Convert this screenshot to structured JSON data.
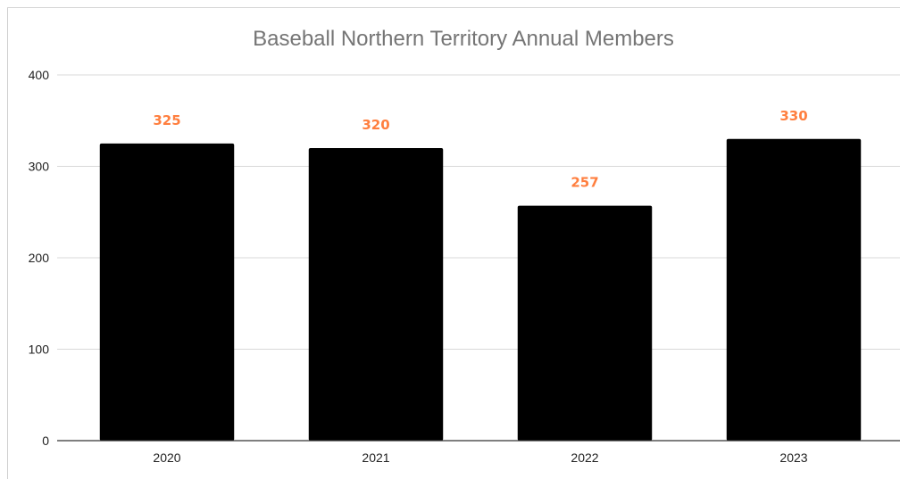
{
  "chart_data": {
    "type": "bar",
    "title": "Baseball Northern Territory Annual Members",
    "xlabel": "",
    "ylabel": "",
    "categories": [
      "2020",
      "2021",
      "2022",
      "2023"
    ],
    "values": [
      325,
      320,
      257,
      330
    ],
    "ylim": [
      0,
      400
    ],
    "yticks": [
      0,
      100,
      200,
      300,
      400
    ],
    "grid": true,
    "legend": "none",
    "bar_color": "#000000",
    "data_label_color": "#FF7F3F",
    "data_labels": [
      "325",
      "320",
      "257",
      "330"
    ]
  }
}
